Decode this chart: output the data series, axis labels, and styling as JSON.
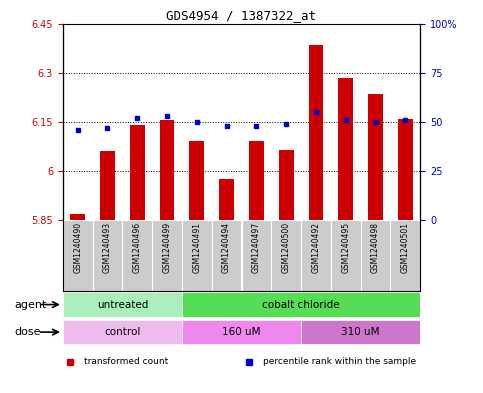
{
  "title": "GDS4954 / 1387322_at",
  "samples": [
    "GSM1240490",
    "GSM1240493",
    "GSM1240496",
    "GSM1240499",
    "GSM1240491",
    "GSM1240494",
    "GSM1240497",
    "GSM1240500",
    "GSM1240492",
    "GSM1240495",
    "GSM1240498",
    "GSM1240501"
  ],
  "transformed_count": [
    5.87,
    6.06,
    6.14,
    6.155,
    6.09,
    5.975,
    6.09,
    6.065,
    6.385,
    6.285,
    6.235,
    6.16
  ],
  "percentile_rank": [
    46,
    47,
    52,
    53,
    50,
    48,
    48,
    49,
    55,
    51,
    50,
    51
  ],
  "ylim_left": [
    5.85,
    6.45
  ],
  "ylim_right": [
    0,
    100
  ],
  "yticks_left": [
    5.85,
    6.0,
    6.15,
    6.3,
    6.45
  ],
  "yticks_right": [
    0,
    25,
    50,
    75,
    100
  ],
  "ytick_labels_left": [
    "5.85",
    "6",
    "6.15",
    "6.3",
    "6.45"
  ],
  "ytick_labels_right": [
    "0",
    "25",
    "50",
    "75",
    "100%"
  ],
  "dotted_lines": [
    6.0,
    6.15,
    6.3
  ],
  "bar_color": "#cc0000",
  "dot_color": "#0000cc",
  "plot_bg": "#ffffff",
  "agent_groups": [
    {
      "label": "untreated",
      "start": 0,
      "end": 4,
      "color": "#aaeebb"
    },
    {
      "label": "cobalt chloride",
      "start": 4,
      "end": 12,
      "color": "#55dd55"
    }
  ],
  "dose_groups": [
    {
      "label": "control",
      "start": 0,
      "end": 4,
      "color": "#eebbee"
    },
    {
      "label": "160 uM",
      "start": 4,
      "end": 8,
      "color": "#ee88ee"
    },
    {
      "label": "310 uM",
      "start": 8,
      "end": 12,
      "color": "#cc77cc"
    }
  ],
  "sample_bg": "#cccccc",
  "bar_width": 0.5,
  "agent_row_label": "agent",
  "dose_row_label": "dose",
  "legend_items": [
    {
      "label": "transformed count",
      "color": "#cc0000"
    },
    {
      "label": "percentile rank within the sample",
      "color": "#0000cc"
    }
  ]
}
